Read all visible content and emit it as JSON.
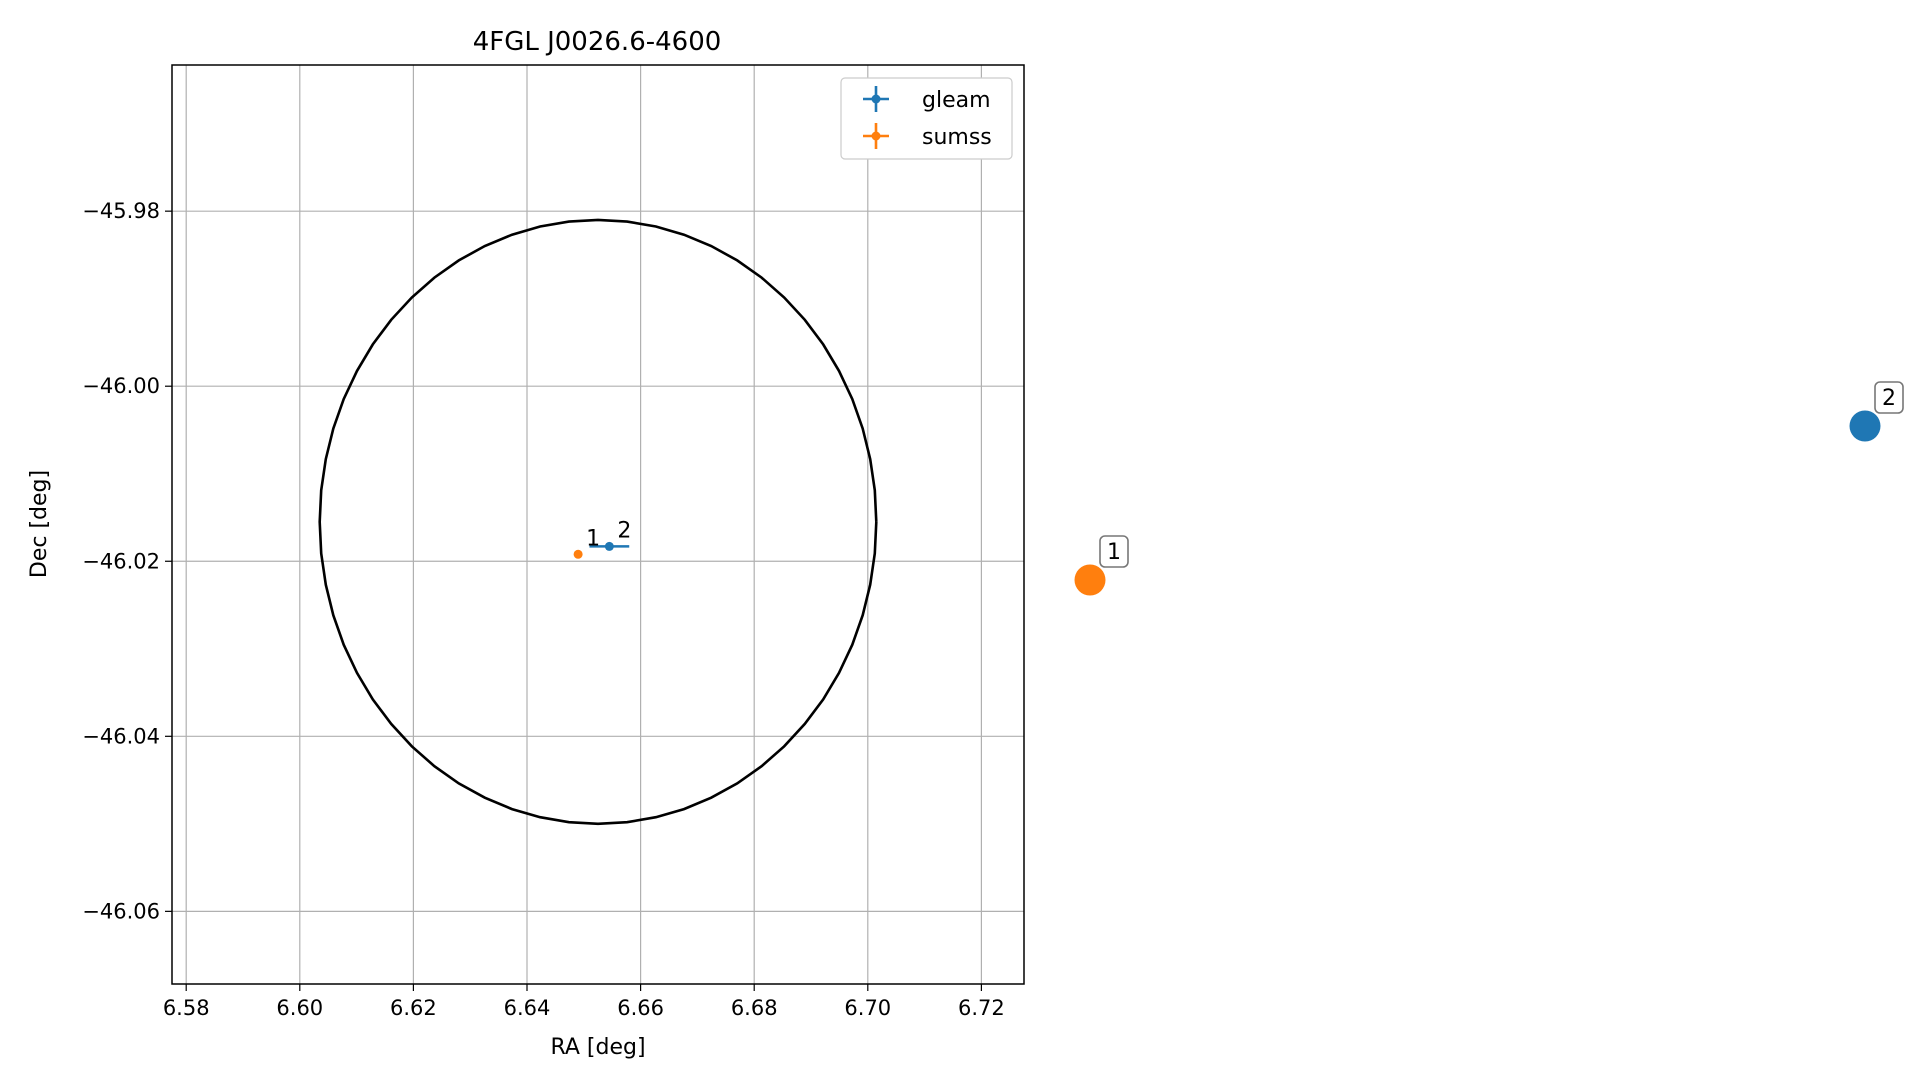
{
  "chart_data": [
    {
      "type": "scatter",
      "title": "4FGL J0026.6-4600",
      "xlabel": "RA [deg]",
      "ylabel": "Dec [deg]",
      "xlim": [
        6.5775,
        6.7275
      ],
      "ylim": [
        -46.0683,
        -45.9633
      ],
      "x_ticks": [
        6.58,
        6.6,
        6.62,
        6.64,
        6.66,
        6.68,
        6.7,
        6.72
      ],
      "x_tick_labels": [
        "6.58",
        "6.60",
        "6.62",
        "6.64",
        "6.66",
        "6.68",
        "6.70",
        "6.72"
      ],
      "y_ticks": [
        -45.98,
        -46.0,
        -46.02,
        -46.04,
        -46.06
      ],
      "y_tick_labels": [
        "−45.98",
        "−46.00",
        "−46.02",
        "−46.04",
        "−46.06"
      ],
      "grid": true,
      "legend_position": "top-right",
      "series": [
        {
          "name": "gleam",
          "color": "#1f77b4",
          "points": [
            {
              "label": "2",
              "x": 6.6545,
              "y": -46.0183,
              "x_err": 0.0035,
              "y_err": 0.0003
            }
          ]
        },
        {
          "name": "sumss",
          "color": "#ff7f0e",
          "points": [
            {
              "label": "1",
              "x": 6.649,
              "y": -46.0192,
              "x_err": 0.0,
              "y_err": 0.0
            }
          ]
        }
      ],
      "ellipse": {
        "color": "#000000",
        "center_x": 6.6525,
        "center_y": -46.0155,
        "semi_axis_ra": 0.049,
        "semi_axis_dec": 0.0345
      }
    },
    {
      "type": "scatter",
      "axes": false,
      "points": [
        {
          "label": "1",
          "color": "#ff7f0e",
          "x": 0.0,
          "y": 0.4
        },
        {
          "label": "2",
          "color": "#1f77b4",
          "x": 1.0,
          "y": 0.6
        }
      ]
    }
  ]
}
